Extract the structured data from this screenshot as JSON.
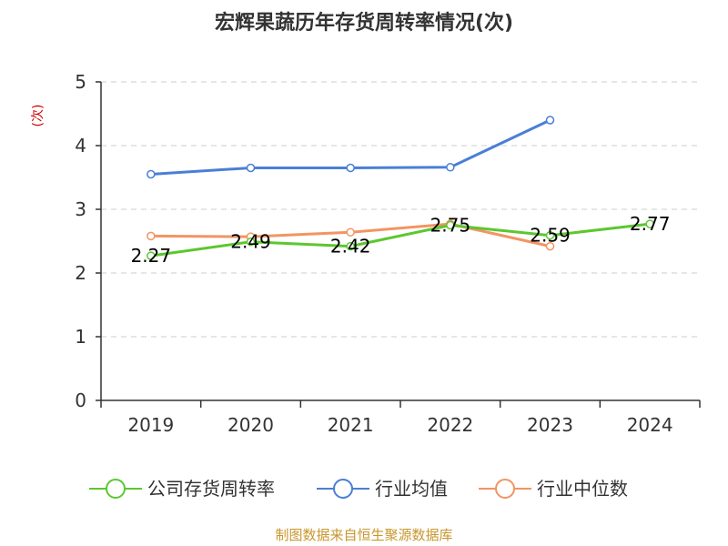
{
  "chart_data": {
    "type": "line",
    "title": "宏辉果蔬历年存货周转率情况(次)",
    "ylabel": "(次)",
    "categories": [
      "2019",
      "2020",
      "2021",
      "2022",
      "2023",
      "2024"
    ],
    "y_ticks": [
      "0",
      "1",
      "2",
      "3",
      "4",
      "5"
    ],
    "ylim": [
      0,
      5
    ],
    "grid": true,
    "legend_position": "bottom",
    "series": [
      {
        "name": "公司存货周转率",
        "color": "#5cc72f",
        "values": [
          2.27,
          2.49,
          2.42,
          2.75,
          2.59,
          2.77
        ],
        "labels": [
          "2.27",
          "2.49",
          "2.42",
          "2.75",
          "2.59",
          "2.77"
        ]
      },
      {
        "name": "行业均值",
        "color": "#4a7fd6",
        "values": [
          3.55,
          3.65,
          3.65,
          3.66,
          4.4,
          null
        ]
      },
      {
        "name": "行业中位数",
        "color": "#f39462",
        "values": [
          2.58,
          2.57,
          2.64,
          2.77,
          2.42,
          null
        ]
      }
    ]
  },
  "source": "制图数据来自恒生聚源数据库",
  "colors": {
    "unit": "#cc0000",
    "source": "#c8962d",
    "grid": "#cccccc",
    "axis": "#333333"
  }
}
